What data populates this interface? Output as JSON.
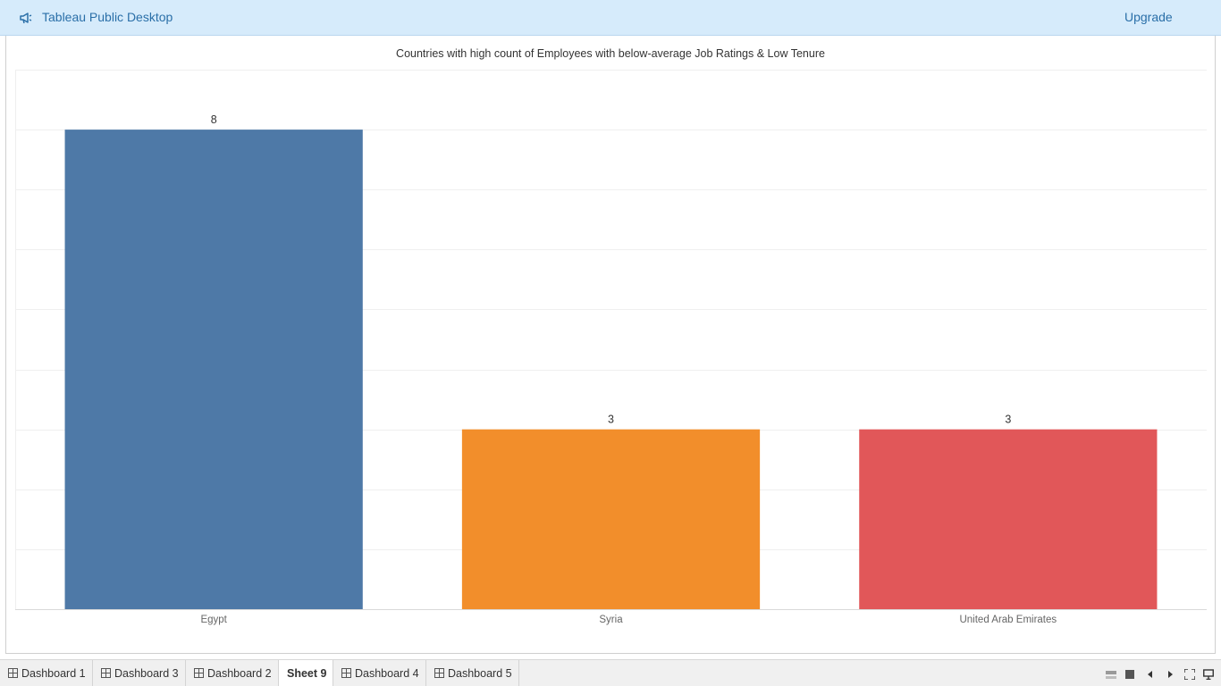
{
  "app": {
    "title": "Tableau Public Desktop",
    "upgrade_label": "Upgrade"
  },
  "colors": {
    "topbar": "#d6ebfb",
    "link": "#2a6fa8",
    "egypt": "#4e79a7",
    "syria": "#f28e2b",
    "uae": "#e15759"
  },
  "chart_data": {
    "type": "bar",
    "title": "Countries with high count of Employees with below-average Job Ratings & Low Tenure",
    "categories": [
      "Egypt",
      "Syria",
      "United Arab Emirates"
    ],
    "values": [
      8,
      3,
      3
    ],
    "colors": [
      "#4e79a7",
      "#f28e2b",
      "#e15759"
    ],
    "ylim": [
      0,
      9
    ],
    "grid": true,
    "xlabel": "",
    "ylabel": ""
  },
  "tabs": [
    {
      "label": "Dashboard 1",
      "icon": "dashboard-grid-icon",
      "active": false
    },
    {
      "label": "Dashboard 3",
      "icon": "dashboard-grid-icon",
      "active": false
    },
    {
      "label": "Dashboard 2",
      "icon": "dashboard-grid-icon",
      "active": false
    },
    {
      "label": "Sheet 9",
      "icon": "",
      "active": true
    },
    {
      "label": "Dashboard 4",
      "icon": "dashboard-grid-icon",
      "active": false
    },
    {
      "label": "Dashboard 5",
      "icon": "dashboard-grid-icon",
      "active": false
    }
  ],
  "controls": [
    "filmstrip-view-icon",
    "sheet-view-icon",
    "previous-icon",
    "next-icon",
    "fullscreen-icon",
    "presentation-icon"
  ]
}
